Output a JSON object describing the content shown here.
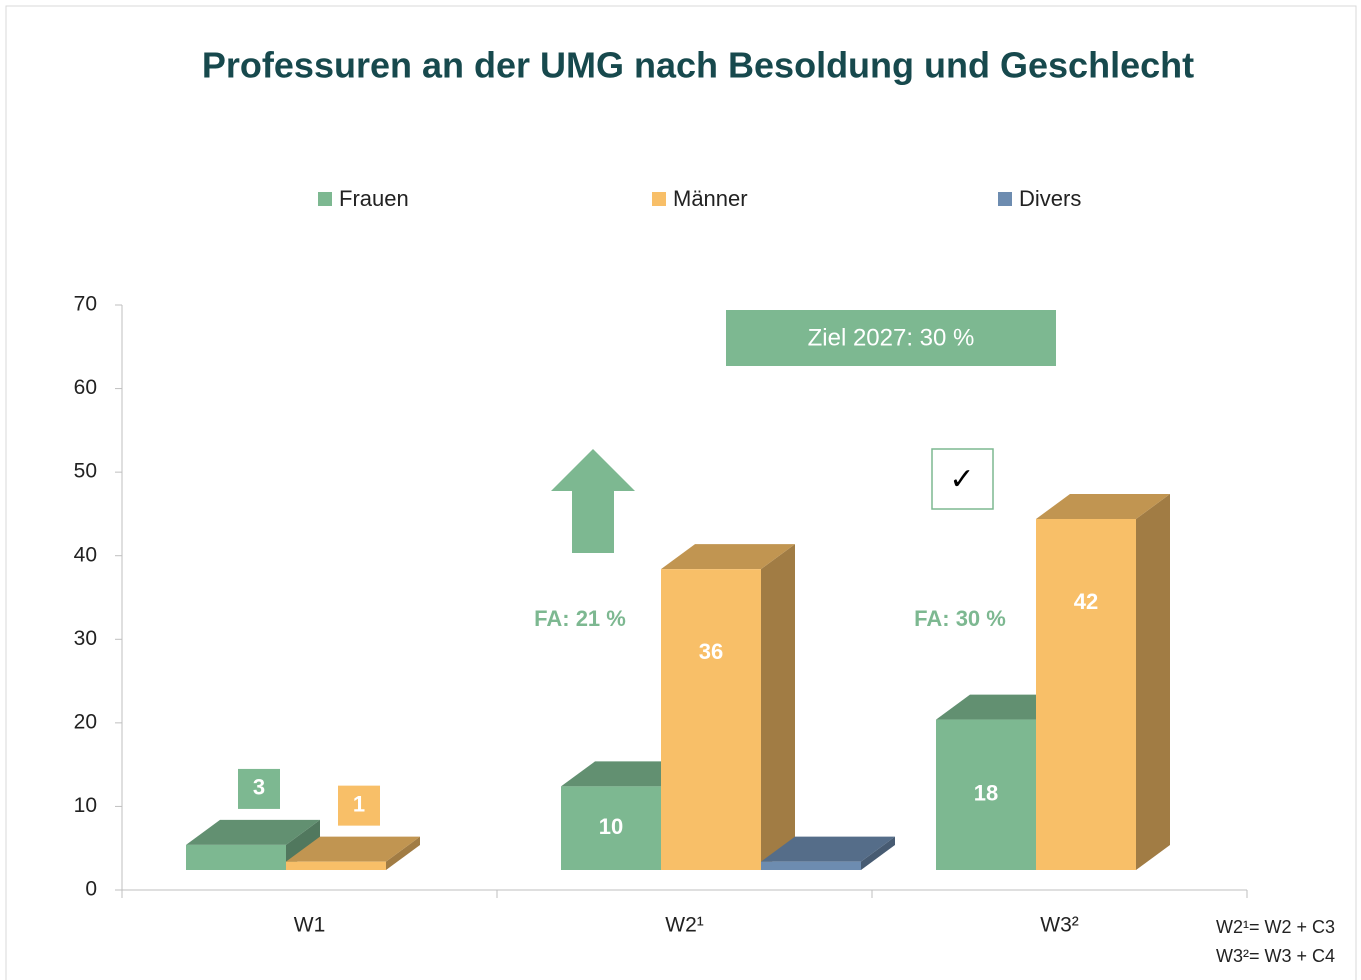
{
  "chart_data": {
    "type": "bar3d",
    "title": "Professuren an der UMG nach Besoldung und Geschlecht",
    "categories": [
      "W1",
      "W2¹",
      "W3²"
    ],
    "series": [
      {
        "name": "Frauen",
        "color": "#7db891",
        "values": [
          3,
          10,
          18
        ]
      },
      {
        "name": "Männer",
        "color": "#f8bf68",
        "values": [
          1,
          36,
          42
        ]
      },
      {
        "name": "Divers",
        "color": "#6d8cb0",
        "values": [
          null,
          1,
          null
        ]
      }
    ],
    "ylim": [
      0,
      70
    ],
    "yticks": [
      0,
      10,
      20,
      30,
      40,
      50,
      60,
      70
    ],
    "annotations": [
      "Ziel 2027: 30 %",
      "FA: 21 %",
      "FA: 30 %",
      "✓"
    ],
    "footnotes": [
      "W2¹= W2 + C3",
      "W3²= W3 + C4"
    ],
    "legend": "top"
  }
}
